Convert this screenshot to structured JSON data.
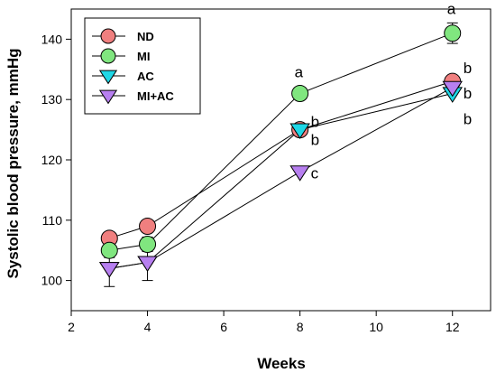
{
  "chart_data": {
    "type": "line",
    "title": "",
    "xlabel": "Weeks",
    "ylabel": "Systolic blood pressure, mmHg",
    "xlim": [
      2,
      13
    ],
    "ylim": [
      95,
      145
    ],
    "xticks": [
      2,
      4,
      6,
      8,
      10,
      12
    ],
    "yticks": [
      100,
      110,
      120,
      130,
      140
    ],
    "legend_position": "top-left",
    "grid": false,
    "x": [
      3,
      4,
      8,
      12
    ],
    "series": [
      {
        "name": "ND",
        "values": [
          107,
          109,
          125,
          133
        ],
        "marker": "circle",
        "color": "#f07f7f",
        "errors": [
          null,
          null,
          null,
          null
        ]
      },
      {
        "name": "MI",
        "values": [
          105,
          106,
          131,
          141
        ],
        "marker": "circle",
        "color": "#80e67f",
        "errors": [
          1.2,
          1.2,
          null,
          1.7
        ]
      },
      {
        "name": "AC",
        "values": [
          102,
          103,
          125,
          131
        ],
        "marker": "triangle-down",
        "color": "#1fd7e6",
        "errors": [
          null,
          null,
          null,
          null
        ]
      },
      {
        "name": "MI+AC",
        "values": [
          102,
          103,
          118,
          132
        ],
        "marker": "triangle-down",
        "color": "#b77ff0",
        "errors": [
          3,
          3,
          null,
          null
        ]
      }
    ],
    "annotations": [
      {
        "text": "a",
        "x": 8,
        "y": 131
      },
      {
        "text": "b",
        "x": 8,
        "y": 125
      },
      {
        "text": "b",
        "x": 8,
        "y": 125
      },
      {
        "text": "c",
        "x": 8,
        "y": 118
      },
      {
        "text": "a",
        "x": 12,
        "y": 141
      },
      {
        "text": "b",
        "x": 12,
        "y": 133
      },
      {
        "text": "b",
        "x": 12,
        "y": 132
      },
      {
        "text": "b",
        "x": 12,
        "y": 131
      }
    ]
  }
}
